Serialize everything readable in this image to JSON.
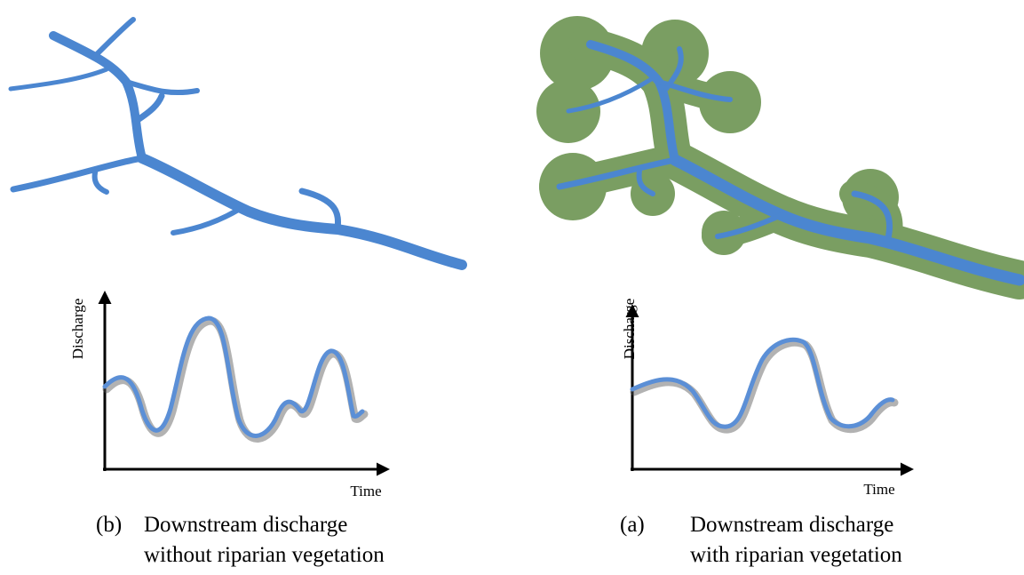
{
  "panels": [
    {
      "y_label": "Discharge",
      "x_label": "Time",
      "tag": "(b)",
      "caption": [
        "Downstream discharge",
        "without riparian vegetation"
      ]
    },
    {
      "y_label": "Discharge",
      "x_label": "Time",
      "tag": "(a)",
      "caption": [
        "Downstream discharge",
        "with riparian vegetation"
      ]
    }
  ]
}
